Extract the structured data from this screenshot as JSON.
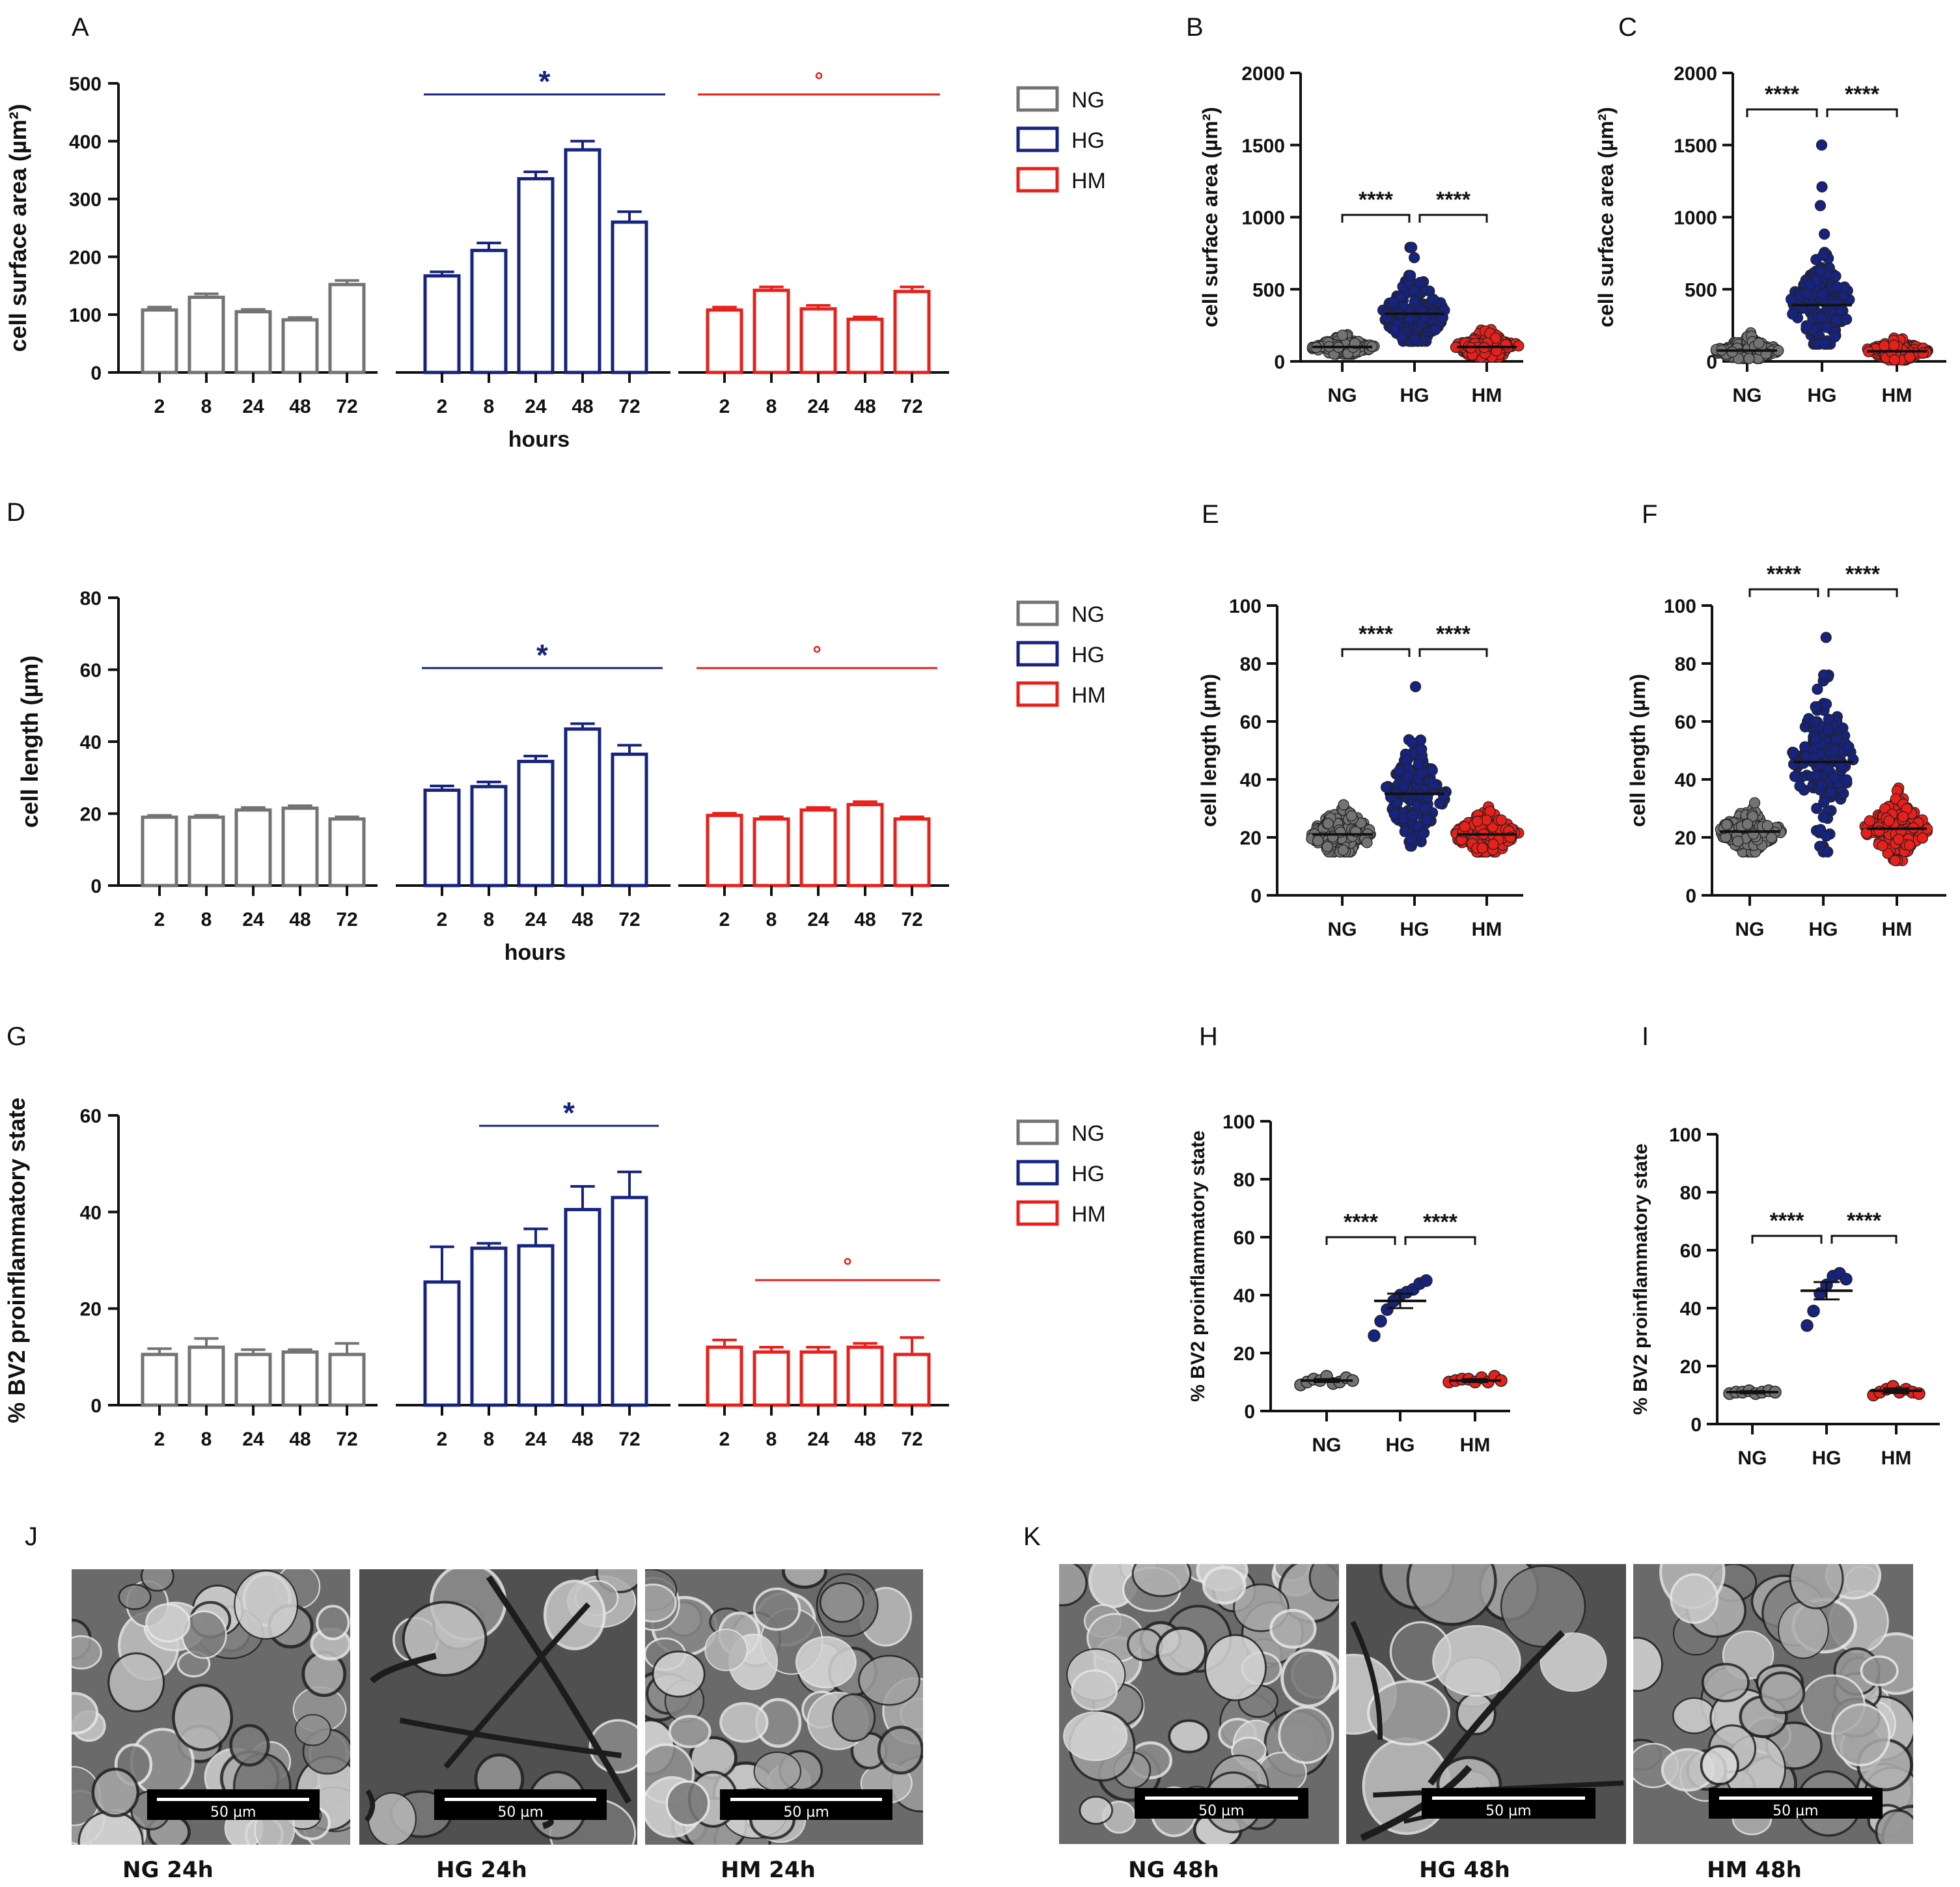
{
  "labels": {
    "A": "A",
    "B": "B",
    "C": "C",
    "D": "D",
    "E": "E",
    "F": "F",
    "G": "G",
    "H": "H",
    "I": "I",
    "J": "J",
    "K": "K"
  },
  "colors": {
    "NG": "#737373",
    "HG": "#16237f",
    "HM": "#e8201b"
  },
  "legend": {
    "entries": [
      "NG",
      "HG",
      "HM"
    ]
  },
  "chart_data": [
    {
      "id": "A",
      "type": "bar",
      "ylabel": "cell surface area (µm²)",
      "xlabel": "hours",
      "ylim": [
        0,
        500
      ],
      "yticks": [
        "0",
        "100",
        "200",
        "300",
        "400",
        "500"
      ],
      "categories": [
        "2",
        "8",
        "24",
        "48",
        "72"
      ],
      "series": [
        {
          "name": "NG",
          "values": [
            108,
            130,
            105,
            91,
            152
          ],
          "err": [
            5,
            6,
            4,
            4,
            7
          ]
        },
        {
          "name": "HG",
          "values": [
            167,
            211,
            335,
            385,
            260
          ],
          "err": [
            7,
            13,
            12,
            15,
            18
          ]
        },
        {
          "name": "HM",
          "values": [
            108,
            142,
            110,
            92,
            140
          ],
          "err": [
            5,
            6,
            6,
            4,
            8
          ]
        }
      ],
      "sig": [
        {
          "series": "HG",
          "mark": "*"
        },
        {
          "series": "HM",
          "mark": "°"
        }
      ]
    },
    {
      "id": "B",
      "type": "scatter",
      "ylabel": "cell surface area (µm²)",
      "ylim": [
        0,
        2000
      ],
      "yticks": [
        "0",
        "500",
        "1000",
        "1500",
        "2000"
      ],
      "categories": [
        "NG",
        "HG",
        "HM"
      ],
      "means": [
        100,
        330,
        100
      ],
      "spread": [
        [
          50,
          210
        ],
        [
          140,
          790
        ],
        [
          30,
          280
        ]
      ],
      "n": 160,
      "outliers": [
        [
          1,
          790
        ]
      ],
      "brackets": [
        "****",
        "****"
      ]
    },
    {
      "id": "C",
      "type": "scatter",
      "ylabel": "cell surface area (µm²)",
      "ylim": [
        0,
        2000
      ],
      "yticks": [
        "0",
        "500",
        "1000",
        "1500",
        "2000"
      ],
      "categories": [
        "NG",
        "HG",
        "HM"
      ],
      "means": [
        75,
        390,
        70
      ],
      "spread": [
        [
          20,
          220
        ],
        [
          120,
          900
        ],
        [
          10,
          190
        ]
      ],
      "n": 160,
      "outliers": [
        [
          1,
          1500
        ],
        [
          1,
          1210
        ],
        [
          1,
          1080
        ]
      ],
      "brackets": [
        "****",
        "****"
      ]
    },
    {
      "id": "D",
      "type": "bar",
      "ylabel": "cell length (µm)",
      "xlabel": "hours",
      "ylim": [
        0,
        80
      ],
      "yticks": [
        "0",
        "20",
        "40",
        "60",
        "80"
      ],
      "categories": [
        "2",
        "8",
        "24",
        "48",
        "72"
      ],
      "series": [
        {
          "name": "NG",
          "values": [
            19,
            19,
            21,
            21.5,
            18.5
          ],
          "err": [
            0.5,
            0.5,
            0.7,
            0.7,
            0.6
          ]
        },
        {
          "name": "HG",
          "values": [
            26.5,
            27.5,
            34.5,
            43.5,
            36.5
          ],
          "err": [
            1.2,
            1.3,
            1.5,
            1.5,
            2.5
          ]
        },
        {
          "name": "HM",
          "values": [
            19.5,
            18.5,
            21,
            22.5,
            18.5
          ],
          "err": [
            0.6,
            0.6,
            0.7,
            0.8,
            0.6
          ]
        }
      ],
      "sig": [
        {
          "series": "HG",
          "mark": "*"
        },
        {
          "series": "HM",
          "mark": "°"
        }
      ]
    },
    {
      "id": "E",
      "type": "scatter",
      "ylabel": "cell length (µm)",
      "ylim": [
        0,
        100
      ],
      "yticks": [
        "0",
        "20",
        "40",
        "60",
        "80",
        "100"
      ],
      "categories": [
        "NG",
        "HG",
        "HM"
      ],
      "means": [
        21,
        35,
        21
      ],
      "spread": [
        [
          15,
          38
        ],
        [
          17,
          58
        ],
        [
          15,
          35
        ]
      ],
      "n": 150,
      "outliers": [
        [
          1,
          72
        ]
      ],
      "brackets": [
        "****",
        "****"
      ]
    },
    {
      "id": "F",
      "type": "scatter",
      "ylabel": "cell length (µm)",
      "ylim": [
        0,
        100
      ],
      "yticks": [
        "0",
        "20",
        "40",
        "60",
        "80",
        "100"
      ],
      "categories": [
        "NG",
        "HG",
        "HM"
      ],
      "means": [
        22,
        46,
        23
      ],
      "spread": [
        [
          15,
          33
        ],
        [
          15,
          76
        ],
        [
          12,
          37
        ]
      ],
      "n": 160,
      "outliers": [
        [
          1,
          89
        ]
      ],
      "brackets": [
        "****",
        "****"
      ]
    },
    {
      "id": "G",
      "type": "bar",
      "ylabel": "% BV2 proinflammatory state",
      "ylim": [
        0,
        60
      ],
      "yticks": [
        "0",
        "20",
        "40",
        "60"
      ],
      "categories": [
        "2",
        "8",
        "24",
        "48",
        "72"
      ],
      "series": [
        {
          "name": "NG",
          "values": [
            10.5,
            12,
            10.5,
            11,
            10.5
          ],
          "err": [
            1.2,
            1.8,
            1,
            0.5,
            2.3
          ]
        },
        {
          "name": "HG",
          "values": [
            25.5,
            32.5,
            33,
            40.5,
            43
          ],
          "err": [
            7.3,
            1,
            3.5,
            4.8,
            5.3
          ]
        },
        {
          "name": "HM",
          "values": [
            12,
            11,
            11,
            12,
            10.5
          ],
          "err": [
            1.5,
            1,
            1,
            0.8,
            3.5
          ]
        }
      ],
      "sig": [
        {
          "series": "HG",
          "mark": "*",
          "from": 1
        },
        {
          "series": "HM",
          "mark": "°",
          "from": 1
        }
      ]
    },
    {
      "id": "H",
      "type": "scatter",
      "ylabel": "% BV2 proinflammatory state",
      "ylim": [
        0,
        100
      ],
      "yticks": [
        "0",
        "20",
        "40",
        "60",
        "80",
        "100"
      ],
      "categories": [
        "NG",
        "HG",
        "HM"
      ],
      "means": [
        10.5,
        38,
        10.5
      ],
      "sem": [
        0.5,
        2.5,
        0.5
      ],
      "points": [
        [
          9,
          10,
          11,
          10.5,
          12,
          9.5,
          10,
          11.5,
          10.5
        ],
        [
          26,
          31,
          35,
          38,
          40,
          41,
          42,
          44,
          45
        ],
        [
          10,
          10.5,
          11,
          11,
          10,
          11.5,
          10,
          12,
          10.5
        ]
      ],
      "brackets": [
        "****",
        "****"
      ]
    },
    {
      "id": "I",
      "type": "scatter",
      "ylabel": "% BV2 proinflammatory state",
      "ylim": [
        0,
        100
      ],
      "yticks": [
        "0",
        "20",
        "40",
        "60",
        "80",
        "100"
      ],
      "categories": [
        "NG",
        "HG",
        "HM"
      ],
      "means": [
        11,
        46,
        11.5
      ],
      "sem": [
        0.4,
        3,
        0.8
      ],
      "points": [
        [
          10.5,
          11,
          11,
          11.5,
          10.5,
          11,
          11.5,
          11
        ],
        [
          34,
          39,
          45,
          48,
          51,
          52,
          50
        ],
        [
          10,
          11,
          12,
          13,
          11,
          12,
          11,
          10.5
        ]
      ],
      "brackets": [
        "****",
        "****"
      ]
    }
  ],
  "micrographs": [
    {
      "caption": "NG 24h",
      "scale": "50 µm",
      "tone": "dense"
    },
    {
      "caption": "HG 24h",
      "scale": "50 µm",
      "tone": "elongated"
    },
    {
      "caption": "HM 24h",
      "scale": "50 µm",
      "tone": "dense"
    },
    {
      "caption": "NG 48h",
      "scale": "50 µm",
      "tone": "dense"
    },
    {
      "caption": "HG 48h",
      "scale": "50 µm",
      "tone": "elongated"
    },
    {
      "caption": "HM 48h",
      "scale": "50 µm",
      "tone": "dense"
    }
  ]
}
